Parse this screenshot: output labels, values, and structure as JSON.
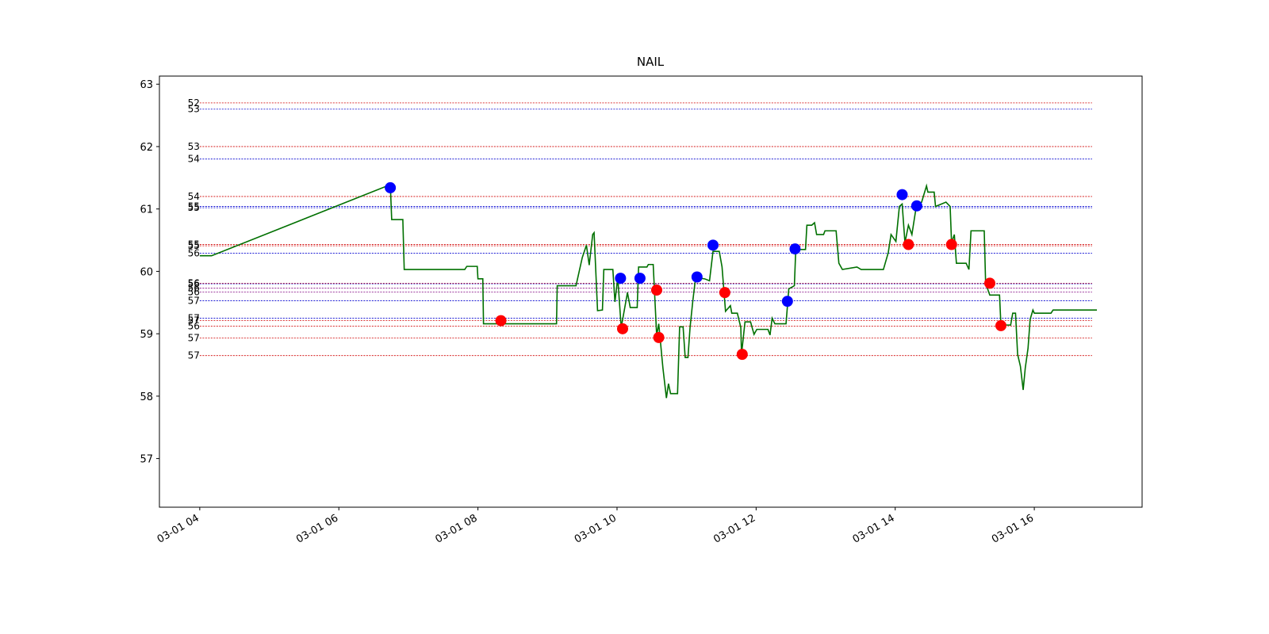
{
  "chart_data": {
    "type": "line",
    "title": "NAIL",
    "xlim": [
      3.42,
      17.55
    ],
    "ylim": [
      56.22,
      63.13
    ],
    "xticks": [
      {
        "value": 4,
        "label": "03-01 04"
      },
      {
        "value": 6,
        "label": "03-01 06"
      },
      {
        "value": 8,
        "label": "03-01 08"
      },
      {
        "value": 10,
        "label": "03-01 10"
      },
      {
        "value": 12,
        "label": "03-01 12"
      },
      {
        "value": 14,
        "label": "03-01 14"
      },
      {
        "value": 16,
        "label": "03-01 16"
      }
    ],
    "yticks": [
      57,
      58,
      59,
      60,
      61,
      62,
      63
    ],
    "levels_xrange": [
      4.0,
      16.83
    ],
    "levels": [
      {
        "y": 62.7,
        "label": "52",
        "color": "#d00000"
      },
      {
        "y": 62.6,
        "label": "53",
        "color": "#0000d0"
      },
      {
        "y": 62.0,
        "label": "53",
        "color": "#d00000"
      },
      {
        "y": 61.8,
        "label": "54",
        "color": "#0000d0"
      },
      {
        "y": 61.2,
        "label": "54",
        "color": "#d00000"
      },
      {
        "y": 61.04,
        "label": "55",
        "color": "#0000d0"
      },
      {
        "y": 61.02,
        "label": "55",
        "color": "#0000d0"
      },
      {
        "y": 60.43,
        "label": "55",
        "color": "#d00000"
      },
      {
        "y": 60.41,
        "label": "55",
        "color": "#d00000"
      },
      {
        "y": 60.29,
        "label": "56",
        "color": "#0000d0"
      },
      {
        "y": 59.81,
        "label": "56",
        "color": "#d00000"
      },
      {
        "y": 59.8,
        "label": "56",
        "color": "#0000d0"
      },
      {
        "y": 59.73,
        "label": "56",
        "color": "#800080"
      },
      {
        "y": 59.67,
        "label": "56",
        "color": "#800080"
      },
      {
        "y": 59.53,
        "label": "57",
        "color": "#0000d0"
      },
      {
        "y": 59.25,
        "label": "57",
        "color": "#0000d0"
      },
      {
        "y": 59.21,
        "label": "57",
        "color": "#d00000"
      },
      {
        "y": 59.12,
        "label": "56",
        "color": "#d00000"
      },
      {
        "y": 58.93,
        "label": "57",
        "color": "#d00000"
      },
      {
        "y": 58.65,
        "label": "57",
        "color": "#d00000"
      }
    ],
    "series": [
      {
        "color": "#007000",
        "x": [
          4.0,
          4.17,
          6.74,
          6.76,
          6.92,
          6.94,
          7.81,
          7.84,
          7.99,
          8.0,
          8.07,
          8.08,
          9.13,
          9.14,
          9.41,
          9.5,
          9.56,
          9.6,
          9.65,
          9.67,
          9.72,
          9.79,
          9.81,
          9.94,
          9.97,
          10.01,
          10.06,
          10.15,
          10.19,
          10.29,
          10.31,
          10.43,
          10.45,
          10.52,
          10.57,
          10.6,
          10.66,
          10.71,
          10.74,
          10.77,
          10.87,
          10.9,
          10.95,
          10.98,
          11.02,
          11.05,
          11.09,
          11.13,
          11.26,
          11.33,
          11.38,
          11.47,
          11.51,
          11.56,
          11.63,
          11.65,
          11.73,
          11.78,
          11.79,
          11.84,
          11.92,
          11.97,
          12.01,
          12.17,
          12.2,
          12.23,
          12.27,
          12.43,
          12.47,
          12.55,
          12.57,
          12.71,
          12.73,
          12.8,
          12.84,
          12.87,
          12.97,
          12.99,
          13.15,
          13.19,
          13.24,
          13.45,
          13.51,
          13.83,
          13.9,
          13.94,
          14.01,
          14.06,
          14.1,
          14.14,
          14.19,
          14.24,
          14.3,
          14.38,
          14.45,
          14.47,
          14.56,
          14.58,
          14.73,
          14.79,
          14.81,
          14.85,
          14.88,
          15.02,
          15.06,
          15.09,
          15.28,
          15.3,
          15.36,
          15.5,
          15.52,
          15.66,
          15.69,
          15.73,
          15.76,
          15.8,
          15.84,
          15.87,
          15.91,
          15.94,
          15.98,
          16.0,
          16.24,
          16.27,
          16.9
        ],
        "values": [
          60.25,
          60.25,
          61.39,
          60.83,
          60.83,
          60.03,
          60.03,
          60.08,
          60.08,
          59.88,
          59.88,
          59.16,
          59.16,
          59.77,
          59.77,
          60.22,
          60.42,
          60.1,
          60.59,
          60.62,
          59.37,
          59.38,
          60.03,
          60.03,
          59.51,
          59.9,
          59.1,
          59.66,
          59.42,
          59.42,
          60.07,
          60.07,
          60.11,
          60.11,
          58.97,
          59.16,
          58.45,
          57.97,
          58.2,
          58.04,
          58.04,
          59.11,
          59.11,
          58.62,
          58.62,
          59.1,
          59.53,
          59.9,
          59.88,
          59.85,
          60.32,
          60.32,
          60.07,
          59.36,
          59.45,
          59.33,
          59.33,
          59.1,
          58.67,
          59.19,
          59.19,
          58.99,
          59.07,
          59.07,
          58.98,
          59.25,
          59.16,
          59.16,
          59.72,
          59.77,
          60.35,
          60.35,
          60.74,
          60.74,
          60.78,
          60.59,
          60.59,
          60.65,
          60.65,
          60.13,
          60.03,
          60.07,
          60.03,
          60.03,
          60.3,
          60.59,
          60.48,
          61.04,
          61.08,
          60.46,
          60.74,
          60.59,
          61.02,
          61.11,
          61.37,
          61.27,
          61.27,
          61.04,
          61.11,
          61.04,
          60.46,
          60.59,
          60.13,
          60.13,
          60.03,
          60.65,
          60.65,
          59.81,
          59.62,
          59.62,
          59.14,
          59.14,
          59.33,
          59.33,
          58.67,
          58.48,
          58.1,
          58.45,
          58.77,
          59.23,
          59.38,
          59.33,
          59.33,
          59.38,
          59.38
        ]
      }
    ],
    "markers": [
      {
        "color": "#0000ff",
        "x": [
          6.74,
          10.05,
          10.33,
          11.15,
          11.38,
          12.45,
          12.56,
          14.1,
          14.31
        ],
        "values": [
          61.34,
          59.89,
          59.89,
          59.91,
          60.42,
          59.52,
          60.36,
          61.23,
          61.05
        ]
      },
      {
        "color": "#ff0000",
        "x": [
          8.33,
          10.08,
          10.57,
          10.6,
          11.55,
          11.8,
          14.19,
          14.81,
          15.36,
          15.52
        ],
        "values": [
          59.21,
          59.08,
          59.7,
          58.94,
          59.66,
          58.67,
          60.43,
          60.43,
          59.81,
          59.13
        ]
      }
    ]
  }
}
